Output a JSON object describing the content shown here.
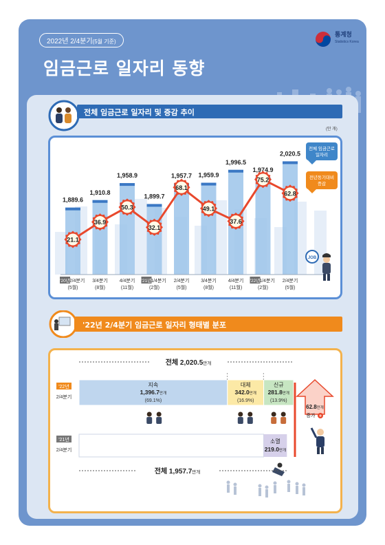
{
  "header": {
    "date_label": "2022년 2/4분기",
    "date_sub": "(5월 기준)",
    "title": "임금근로 일자리 동향",
    "logo_name": "통계청",
    "logo_sub": "Statistics Korea"
  },
  "section1": {
    "title": "전체 임금근로 일자리 및 증감 추이",
    "unit": "(만 개)"
  },
  "section2": {
    "title": "'22년 2/4분기 임금근로 일자리 형태별 분포"
  },
  "chart_data": {
    "type": "bar",
    "categories": [
      "2/4분기 (5월)",
      "3/4분기 (8월)",
      "4/4분기 (11월)",
      "1/4분기 (2월)",
      "2/4분기 (5월)",
      "3/4분기 (8월)",
      "4/4분기 (11월)",
      "1/4분기 (2월)",
      "2/4분기 (5월)"
    ],
    "category_lines": [
      [
        "2/4분기",
        "(5월)"
      ],
      [
        "3/4분기",
        "(8월)"
      ],
      [
        "4/4분기",
        "(11월)"
      ],
      [
        "1/4분기",
        "(2월)"
      ],
      [
        "2/4분기",
        "(5월)"
      ],
      [
        "3/4분기",
        "(8월)"
      ],
      [
        "4/4분기",
        "(11월)"
      ],
      [
        "1/4분기",
        "(2월)"
      ],
      [
        "2/4분기",
        "(5월)"
      ]
    ],
    "year_tags": [
      {
        "index": 0,
        "label": "'20년"
      },
      {
        "index": 3,
        "label": "'21년"
      },
      {
        "index": 7,
        "label": "'22년"
      }
    ],
    "series": [
      {
        "name": "전체 임금근로 일자리",
        "type": "bar",
        "values": [
          1889.6,
          1910.8,
          1958.9,
          1899.7,
          1957.7,
          1959.9,
          1996.5,
          1974.9,
          2020.5
        ],
        "color": "#9cc4ea"
      },
      {
        "name": "전년동기대비 증감",
        "type": "line",
        "values": [
          21.1,
          36.9,
          50.3,
          32.1,
          68.1,
          49.1,
          37.6,
          75.2,
          62.8
        ],
        "color": "#e8482c"
      }
    ],
    "legend": {
      "bar": "전체 임금근로\n일자리",
      "line": "전년동기대비\n증감",
      "placement": "right"
    }
  },
  "distribution": {
    "total_2022": {
      "label": "전체",
      "value": "2,020.5",
      "unit": "만개"
    },
    "total_2021": {
      "label": "전체",
      "value": "1,957.7",
      "unit": "만개"
    },
    "row_2022": {
      "year": "'22년",
      "quarter": "2/4분기"
    },
    "row_2021": {
      "year": "'21년",
      "quarter": "2/4분기"
    },
    "segments": [
      {
        "name": "지속",
        "value": "1,396.7",
        "unit": "만개",
        "pct": "(69.1%)",
        "share": 69.1,
        "color": "#bfd6ee"
      },
      {
        "name": "대체",
        "value": "342.0",
        "unit": "만개",
        "pct": "(16.9%)",
        "share": 16.9,
        "color": "#fce9a6"
      },
      {
        "name": "신규",
        "value": "281.8",
        "unit": "만개",
        "pct": "(13.9%)",
        "share": 13.9,
        "color": "#c7e6c2"
      }
    ],
    "extinct": {
      "name": "소멸",
      "value": "219.0",
      "unit": "만개",
      "color": "#d6d0ea"
    },
    "increase": {
      "value": "62.8",
      "unit": "만개",
      "label": "증가"
    }
  },
  "colors": {
    "navy": "#2e6bb5",
    "orange": "#f08a1c",
    "red": "#e8482c"
  }
}
